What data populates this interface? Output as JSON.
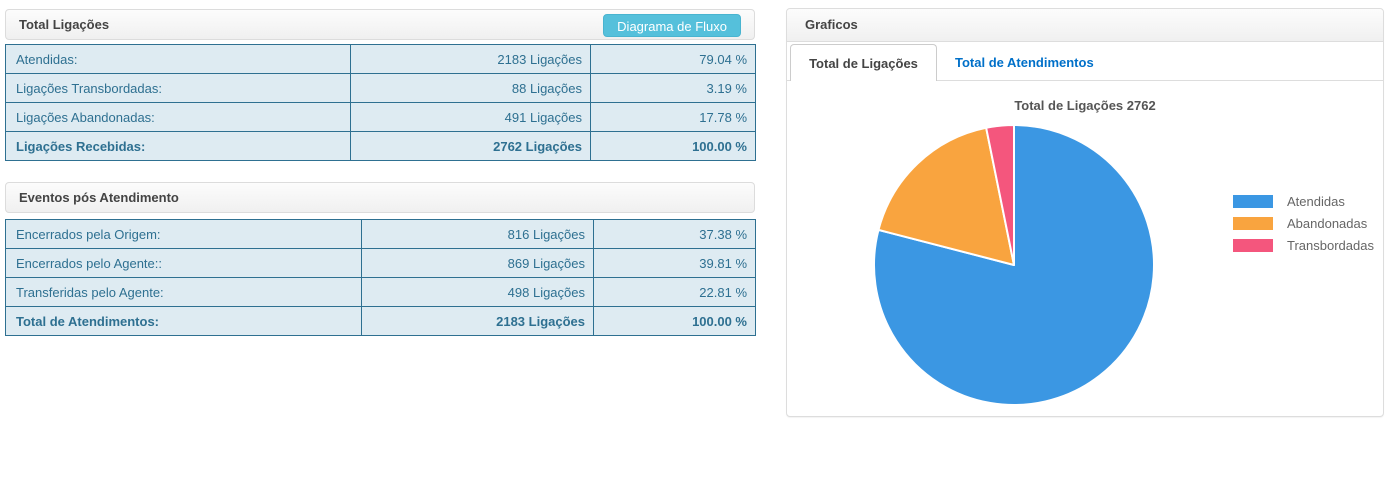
{
  "panels": {
    "total_ligacoes": {
      "title": "Total Ligações",
      "button_label": "Diagrama de Fluxo",
      "rows": [
        {
          "label": "Atendidas:",
          "value": "2183 Ligações",
          "pct": "79.04 %"
        },
        {
          "label": "Ligações Transbordadas:",
          "value": "88 Ligações",
          "pct": "3.19 %"
        },
        {
          "label": "Ligações Abandonadas:",
          "value": "491 Ligações",
          "pct": "17.78 %"
        },
        {
          "label": "Ligações Recebidas:",
          "value": "2762 Ligações",
          "pct": "100.00 %"
        }
      ]
    },
    "eventos": {
      "title": "Eventos pós Atendimento",
      "rows": [
        {
          "label": "Encerrados pela Origem:",
          "value": "816 Ligações",
          "pct": "37.38 %"
        },
        {
          "label": "Encerrados pelo Agente::",
          "value": "869 Ligações",
          "pct": "39.81 %"
        },
        {
          "label": "Transferidas pelo Agente:",
          "value": "498 Ligações",
          "pct": "22.81 %"
        },
        {
          "label": "Total de Atendimentos:",
          "value": "2183 Ligações",
          "pct": "100.00 %"
        }
      ]
    },
    "graficos": {
      "title": "Graficos",
      "tabs": [
        {
          "label": "Total de Ligações",
          "active": true
        },
        {
          "label": "Total de Atendimentos",
          "active": false
        }
      ]
    }
  },
  "chart_data": {
    "type": "pie",
    "title": "Total de Ligações 2762",
    "total": 2762,
    "start_angle_deg": -90,
    "direction": "clockwise",
    "legend_position": "right",
    "slices": [
      {
        "label": "Atendidas",
        "value": 2183,
        "pct": 79.04,
        "color": "#3b97e3"
      },
      {
        "label": "Abandonadas",
        "value": 491,
        "pct": 17.78,
        "color": "#f9a43f"
      },
      {
        "label": "Transbordadas",
        "value": 88,
        "pct": 3.19,
        "color": "#f4567d"
      }
    ]
  },
  "colors": {
    "button_bg": "#55c0db",
    "table_border": "#2e7091",
    "table_bg": "#deebf2",
    "table_text": "#2e7091",
    "tab_link_blue": "#0070c9",
    "panel_border": "#dddddd"
  }
}
